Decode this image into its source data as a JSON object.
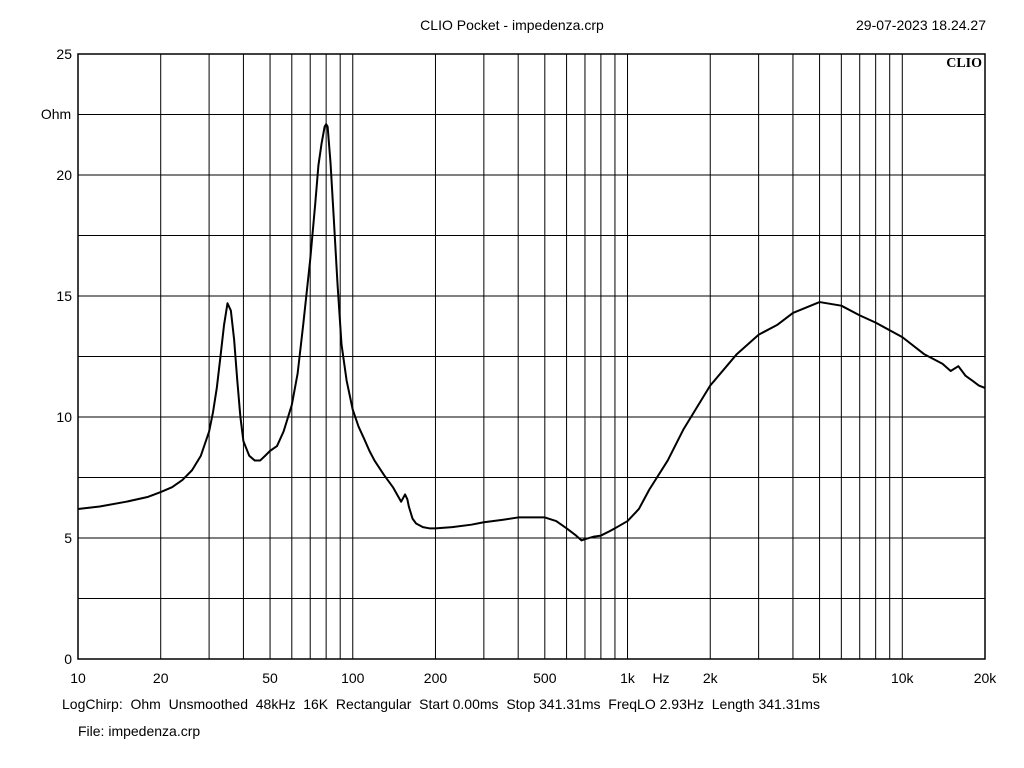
{
  "header": {
    "title": "CLIO Pocket - impedenza.crp",
    "timestamp": "29-07-2023 18.24.27"
  },
  "brand_label": "CLIO",
  "footer": {
    "settings": [
      "LogChirp:",
      "Ohm",
      "Unsmoothed",
      "48kHz",
      "16K",
      "Rectangular",
      "Start 0.00ms",
      "Stop 341.31ms",
      "FreqLO 2.93Hz",
      "Length 341.31ms"
    ],
    "file": "File: impedenza.crp"
  },
  "chart_data": {
    "type": "line",
    "title": "CLIO Pocket - impedenza.crp",
    "xlabel": "Hz",
    "ylabel": "Ohm",
    "x_scale": "log",
    "xlim": [
      10,
      20000
    ],
    "ylim": [
      0,
      25
    ],
    "grid": true,
    "x_tick_labels": [
      {
        "value": 10,
        "label": "10"
      },
      {
        "value": 20,
        "label": "20"
      },
      {
        "value": 50,
        "label": "50"
      },
      {
        "value": 100,
        "label": "100"
      },
      {
        "value": 200,
        "label": "200"
      },
      {
        "value": 500,
        "label": "500"
      },
      {
        "value": 1000,
        "label": "1k"
      },
      {
        "value": 2000,
        "label": "2k"
      },
      {
        "value": 5000,
        "label": "5k"
      },
      {
        "value": 10000,
        "label": "10k"
      },
      {
        "value": 20000,
        "label": "20k"
      }
    ],
    "y_tick_labels": [
      {
        "value": 0,
        "label": "0"
      },
      {
        "value": 5,
        "label": "5"
      },
      {
        "value": 10,
        "label": "10"
      },
      {
        "value": 15,
        "label": "15"
      },
      {
        "value": 20,
        "label": "20"
      },
      {
        "value": 25,
        "label": "25"
      }
    ],
    "line_color": "#000000",
    "series": [
      {
        "x": [
          10,
          12,
          15,
          18,
          20,
          22,
          24,
          26,
          28,
          30,
          31,
          32,
          33,
          34,
          35,
          36,
          37,
          38,
          39,
          40,
          42,
          44,
          46,
          48,
          50,
          53,
          56,
          60,
          63,
          66,
          70,
          73,
          75,
          77,
          79,
          80,
          81,
          83,
          85,
          88,
          91,
          95,
          100,
          105,
          110,
          115,
          120,
          130,
          140,
          150,
          155,
          158,
          160,
          165,
          170,
          180,
          190,
          200,
          230,
          270,
          300,
          350,
          400,
          450,
          500,
          550,
          600,
          650,
          680,
          700,
          750,
          800,
          850,
          900,
          1000,
          1100,
          1200,
          1400,
          1600,
          2000,
          2500,
          3000,
          3500,
          4000,
          5000,
          6000,
          7000,
          8000,
          10000,
          12000,
          14000,
          15000,
          16000,
          17000,
          17500,
          18000,
          19000,
          20000
        ],
        "y": [
          6.2,
          6.3,
          6.5,
          6.7,
          6.9,
          7.1,
          7.4,
          7.8,
          8.4,
          9.4,
          10.2,
          11.2,
          12.5,
          13.8,
          14.7,
          14.4,
          13.2,
          11.5,
          10.0,
          9.0,
          8.4,
          8.2,
          8.2,
          8.4,
          8.6,
          8.8,
          9.4,
          10.5,
          11.8,
          13.8,
          16.5,
          18.8,
          20.4,
          21.3,
          22.0,
          22.1,
          22.0,
          20.5,
          18.5,
          15.5,
          13.0,
          11.5,
          10.3,
          9.6,
          9.1,
          8.6,
          8.2,
          7.6,
          7.1,
          6.5,
          6.8,
          6.6,
          6.3,
          5.8,
          5.6,
          5.45,
          5.4,
          5.4,
          5.45,
          5.55,
          5.65,
          5.75,
          5.85,
          5.85,
          5.85,
          5.7,
          5.4,
          5.1,
          4.9,
          4.95,
          5.05,
          5.1,
          5.25,
          5.4,
          5.7,
          6.2,
          7.0,
          8.2,
          9.5,
          11.3,
          12.6,
          13.4,
          13.8,
          14.3,
          14.75,
          14.6,
          14.2,
          13.9,
          13.3,
          12.6,
          12.2,
          11.9,
          12.1,
          11.7,
          11.6,
          11.5,
          11.3,
          11.2
        ]
      }
    ]
  }
}
